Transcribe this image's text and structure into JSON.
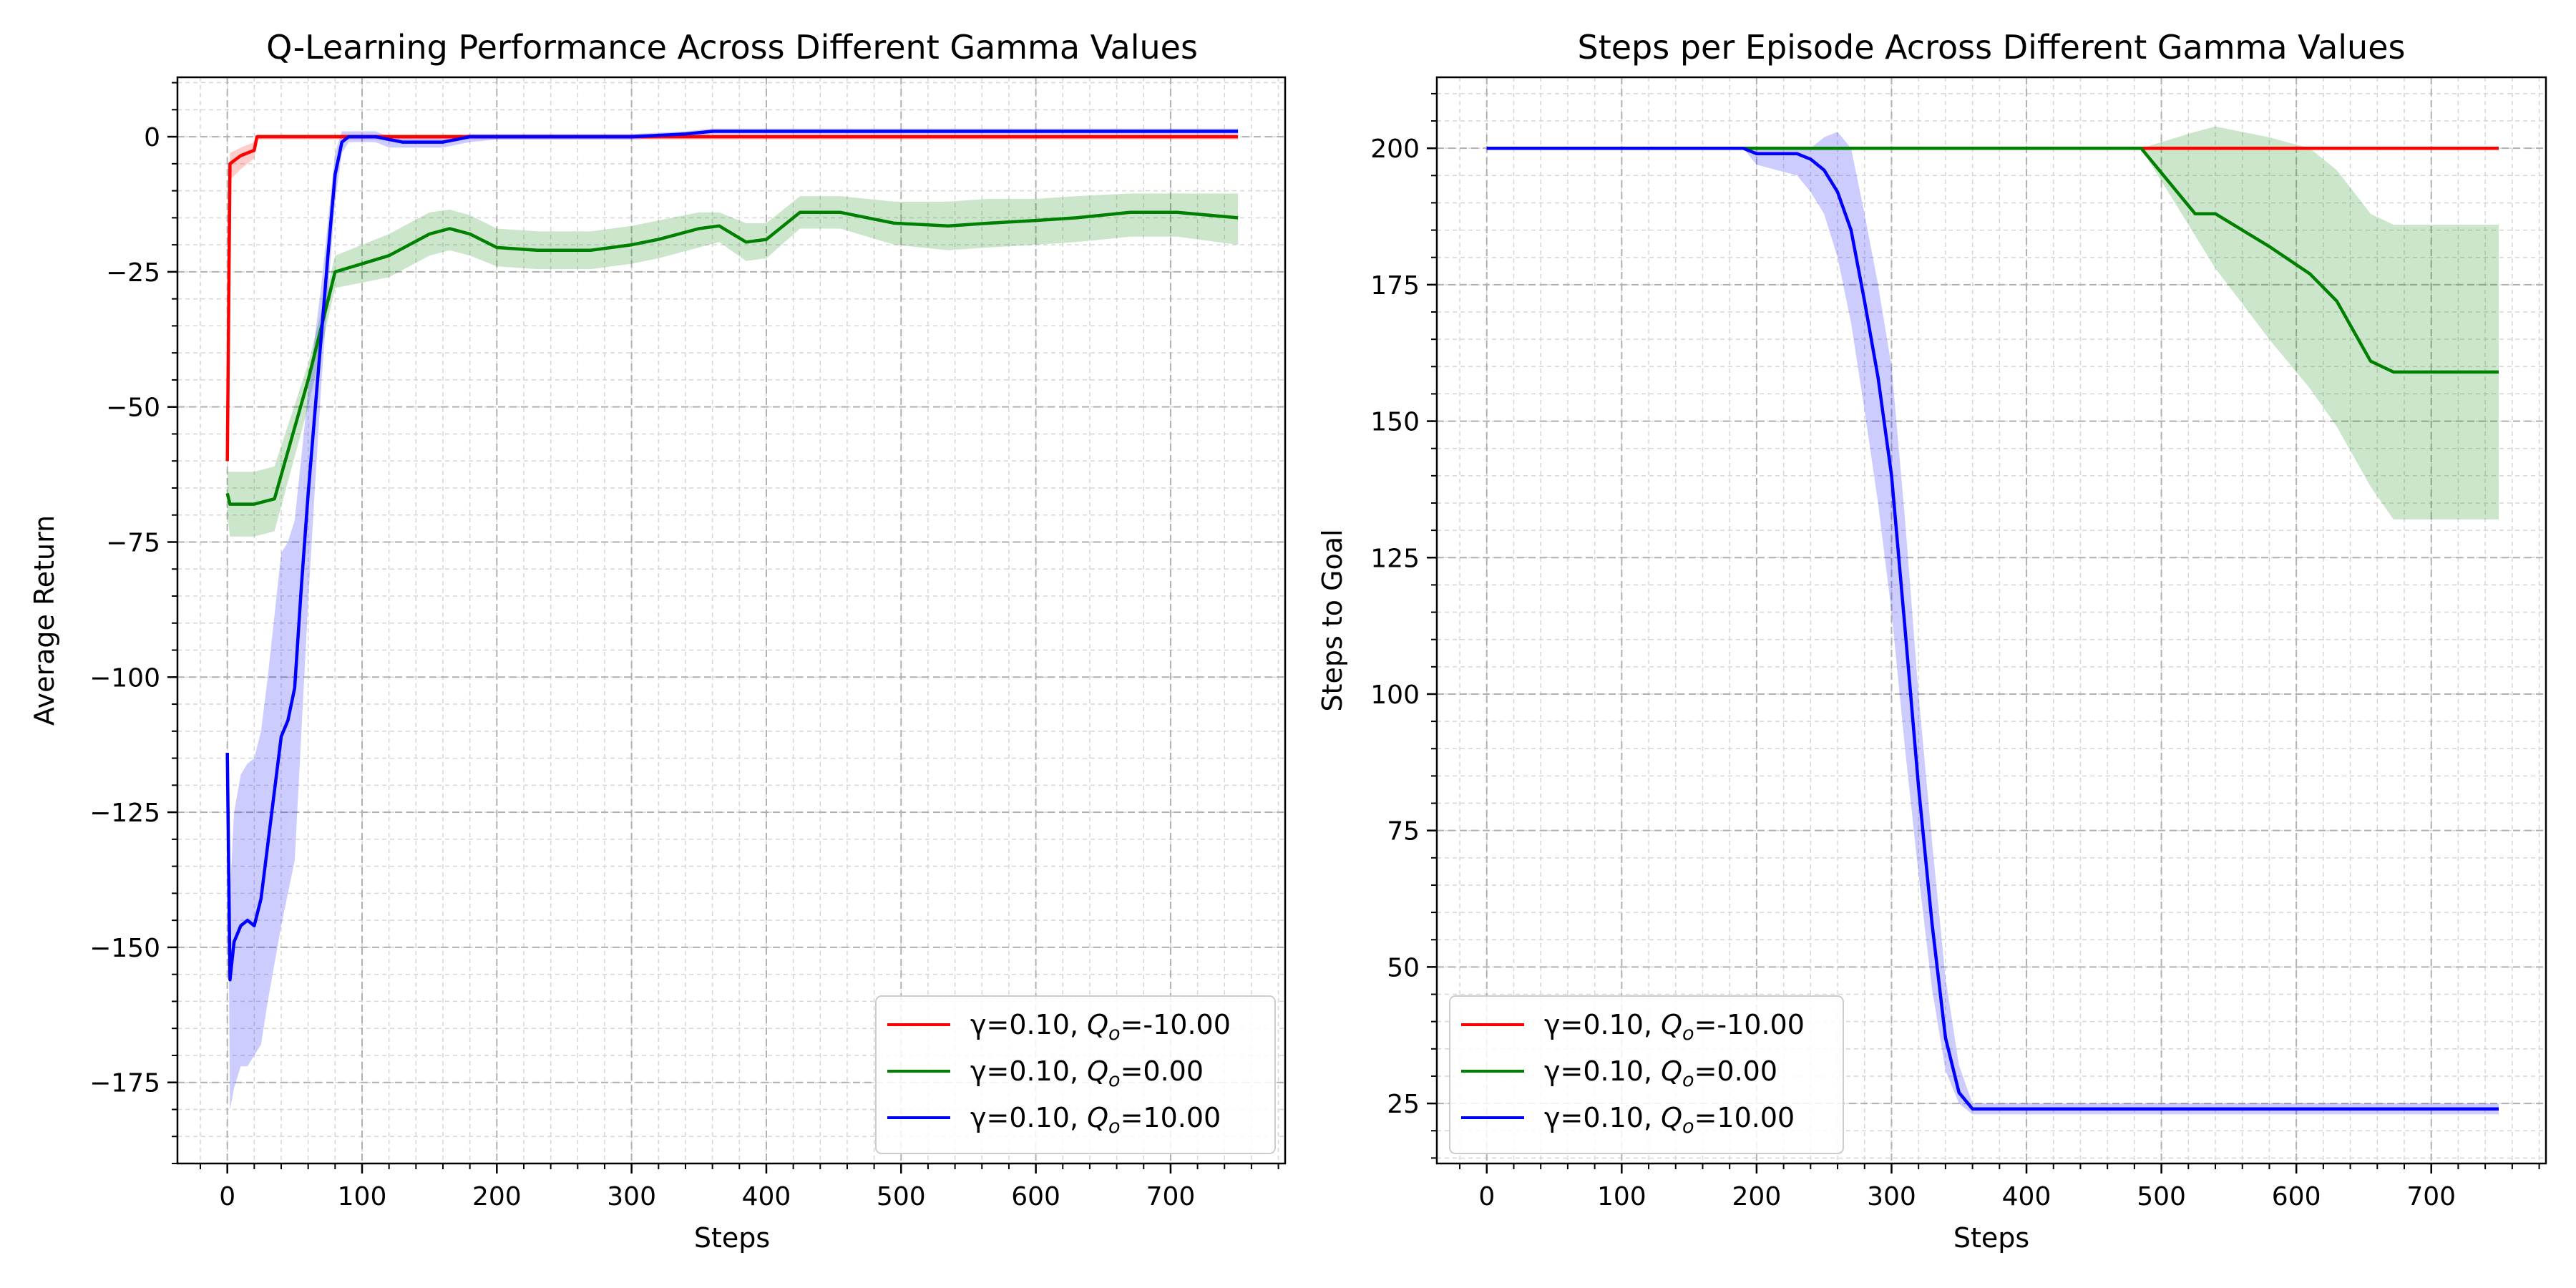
{
  "chart_data": [
    {
      "type": "line",
      "title": "Q-Learning Performance Across Different Gamma Values",
      "xlabel": "Steps",
      "ylabel": "Average Return",
      "xlim": [
        -37,
        785
      ],
      "ylim": [
        -190,
        11
      ],
      "xticks": [
        0,
        100,
        200,
        300,
        400,
        500,
        600,
        700
      ],
      "yticks": [
        0,
        -25,
        -50,
        -75,
        -100,
        -125,
        -150,
        -175
      ],
      "grid": true,
      "legend_position": "bottom-right",
      "series": [
        {
          "name": "γ=0.10, Q_o=-10.00",
          "legend_prefix": "γ=0.10, ",
          "legend_var": "Q",
          "legend_sub": "o",
          "legend_suffix": "=-10.00",
          "color": "#ff0000",
          "x": [
            0,
            2,
            10,
            20,
            22,
            40,
            100,
            200,
            300,
            400,
            500,
            600,
            700,
            750
          ],
          "y": [
            -60,
            -5,
            -3.5,
            -2.5,
            0,
            0,
            0,
            0,
            0,
            0,
            0,
            0,
            0,
            0
          ],
          "upper": [
            -60,
            -3,
            -2,
            -1,
            0.5,
            0.5,
            0.5,
            0.5,
            0.5,
            0.5,
            0.5,
            0.5,
            0.5,
            0.5
          ],
          "lower": [
            -60,
            -8,
            -6,
            -4,
            -0.5,
            -0.5,
            -0.5,
            -0.5,
            -0.5,
            -0.5,
            -0.5,
            -0.5,
            -0.5,
            -0.5
          ]
        },
        {
          "name": "γ=0.10, Q_o=0.00",
          "legend_prefix": "γ=0.10, ",
          "legend_var": "Q",
          "legend_sub": "o",
          "legend_suffix": "=0.00",
          "color": "#008000",
          "x": [
            0,
            2,
            20,
            35,
            60,
            80,
            100,
            120,
            150,
            165,
            180,
            200,
            230,
            270,
            300,
            320,
            350,
            365,
            385,
            400,
            425,
            455,
            495,
            535,
            565,
            600,
            630,
            670,
            705,
            750
          ],
          "y": [
            -66,
            -68,
            -68,
            -67,
            -45,
            -25,
            -23.5,
            -22,
            -18,
            -17,
            -18,
            -20.5,
            -21,
            -21,
            -20,
            -19,
            -17,
            -16.5,
            -19.5,
            -19,
            -14,
            -14,
            -16,
            -16.5,
            -16,
            -15.5,
            -15,
            -14,
            -14,
            -15
          ],
          "upper": [
            -62,
            -62,
            -62,
            -61,
            -42,
            -22,
            -20,
            -18,
            -14,
            -13.5,
            -14.5,
            -17,
            -17.5,
            -17.5,
            -16.5,
            -15.5,
            -14,
            -14,
            -16,
            -16,
            -11,
            -11,
            -12,
            -12,
            -11.5,
            -11.5,
            -11,
            -10.5,
            -10.5,
            -10.5
          ],
          "lower": [
            -70,
            -74,
            -74,
            -73,
            -50,
            -28,
            -27,
            -26,
            -22,
            -21,
            -22,
            -24,
            -24.5,
            -24.5,
            -23.5,
            -22.5,
            -20.5,
            -19.5,
            -23,
            -22.5,
            -17,
            -17,
            -20,
            -21,
            -20.5,
            -20,
            -19.5,
            -18.5,
            -18.5,
            -20
          ]
        },
        {
          "name": "γ=0.10, Q_o=10.00",
          "legend_prefix": "γ=0.10, ",
          "legend_var": "Q",
          "legend_sub": "o",
          "legend_suffix": "=10.00",
          "color": "#0000ff",
          "x": [
            0,
            2,
            5,
            10,
            15,
            20,
            25,
            30,
            40,
            45,
            50,
            55,
            60,
            65,
            70,
            75,
            80,
            85,
            90,
            95,
            100,
            110,
            120,
            130,
            140,
            150,
            160,
            170,
            180,
            200,
            250,
            300,
            340,
            360,
            400,
            500,
            600,
            700,
            750
          ],
          "y": [
            -114,
            -156,
            -149,
            -146,
            -145,
            -146,
            -141,
            -131,
            -111,
            -108,
            -102,
            -83,
            -66,
            -51,
            -36,
            -21,
            -7,
            -1,
            0,
            0,
            0,
            0,
            -0.5,
            -1,
            -1,
            -1,
            -1,
            -0.5,
            0,
            0,
            0,
            0,
            0.5,
            1,
            1,
            1,
            1,
            1,
            1
          ],
          "upper": [
            -114,
            -140,
            -125,
            -118,
            -116,
            -115,
            -110,
            -100,
            -77,
            -75,
            -71,
            -59,
            -47,
            -37,
            -27,
            -15,
            -3,
            1,
            1,
            1,
            1,
            1,
            0,
            0,
            0,
            0,
            0,
            0,
            0.5,
            0.5,
            0.5,
            0.5,
            1,
            1.5,
            1.5,
            1.5,
            1.5,
            1.5,
            1.5
          ],
          "lower": [
            -114,
            -180,
            -176,
            -172,
            -172,
            -170,
            -168,
            -160,
            -146,
            -140,
            -134,
            -110,
            -86,
            -65,
            -45,
            -28,
            -12,
            -3,
            -1,
            -1,
            -1,
            -1,
            -2,
            -2,
            -2,
            -2,
            -2,
            -1.5,
            -1,
            -0.5,
            -0.5,
            -0.5,
            0,
            0.5,
            0.5,
            0.5,
            0.5,
            0.5,
            0.5
          ]
        }
      ]
    },
    {
      "type": "line",
      "title": "Steps per Episode Across Different Gamma Values",
      "xlabel": "Steps",
      "ylabel": "Steps to Goal",
      "xlim": [
        -37,
        785
      ],
      "ylim": [
        14,
        213
      ],
      "xticks": [
        0,
        100,
        200,
        300,
        400,
        500,
        600,
        700
      ],
      "yticks": [
        200,
        175,
        150,
        125,
        100,
        75,
        50,
        25
      ],
      "grid": true,
      "legend_position": "bottom-left",
      "series": [
        {
          "name": "γ=0.10, Q_o=-10.00",
          "legend_prefix": "γ=0.10, ",
          "legend_var": "Q",
          "legend_sub": "o",
          "legend_suffix": "=-10.00",
          "color": "#ff0000",
          "x": [
            0,
            100,
            200,
            300,
            400,
            500,
            600,
            700,
            750
          ],
          "y": [
            200,
            200,
            200,
            200,
            200,
            200,
            200,
            200,
            200
          ],
          "upper": [
            200,
            200,
            200,
            200,
            200,
            200,
            200,
            200,
            200
          ],
          "lower": [
            200,
            200,
            200,
            200,
            200,
            200,
            200,
            200,
            200
          ]
        },
        {
          "name": "γ=0.10, Q_o=0.00",
          "legend_prefix": "γ=0.10, ",
          "legend_var": "Q",
          "legend_sub": "o",
          "legend_suffix": "=0.00",
          "color": "#008000",
          "x": [
            0,
            100,
            200,
            300,
            400,
            485,
            525,
            540,
            580,
            610,
            630,
            655,
            672,
            700,
            750
          ],
          "y": [
            200,
            200,
            200,
            200,
            200,
            200,
            188,
            188,
            182,
            177,
            172,
            161,
            159,
            159,
            159
          ],
          "upper": [
            200,
            200,
            200,
            200,
            200,
            200,
            203,
            204,
            202,
            200,
            196,
            188,
            186,
            186,
            186
          ],
          "lower": [
            200,
            200,
            200,
            200,
            200,
            200,
            184,
            178,
            165,
            156,
            149,
            138,
            132,
            132,
            132
          ]
        },
        {
          "name": "γ=0.10, Q_o=10.00",
          "legend_prefix": "γ=0.10, ",
          "legend_var": "Q",
          "legend_sub": "o",
          "legend_suffix": "=10.00",
          "color": "#0000ff",
          "x": [
            0,
            100,
            190,
            200,
            230,
            240,
            250,
            260,
            270,
            280,
            290,
            300,
            310,
            320,
            330,
            340,
            350,
            360,
            400,
            500,
            600,
            700,
            750
          ],
          "y": [
            200,
            200,
            200,
            199,
            199,
            198,
            196,
            192,
            185,
            172,
            158,
            140,
            112,
            83,
            58,
            37,
            27,
            24,
            24,
            24,
            24,
            24,
            24
          ],
          "upper": [
            200,
            200,
            200,
            200,
            200,
            200,
            202,
            203,
            200,
            188,
            175,
            160,
            132,
            100,
            73,
            48,
            32,
            25,
            25,
            25,
            25,
            25,
            25
          ],
          "lower": [
            200,
            200,
            200,
            197,
            195,
            192,
            188,
            180,
            168,
            152,
            135,
            115,
            90,
            67,
            46,
            31,
            25,
            23,
            23,
            23,
            23,
            23,
            23
          ]
        }
      ]
    }
  ]
}
